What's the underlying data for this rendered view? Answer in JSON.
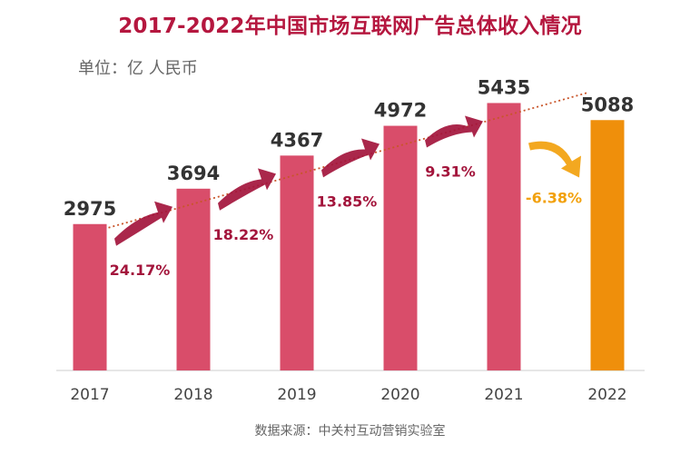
{
  "chart_data": {
    "type": "bar",
    "title": "2017-2022年中国市场互联网广告总体收入情况",
    "unit": "单位：亿 人民币",
    "source": "数据来源：中关村互动营销实验室",
    "categories": [
      "2017",
      "2018",
      "2019",
      "2020",
      "2021",
      "2022"
    ],
    "values": [
      2975,
      3694,
      4367,
      4972,
      5435,
      5088
    ],
    "growth_rates": [
      "24.17%",
      "18.22%",
      "13.85%",
      "9.31%",
      "-6.38%"
    ],
    "ylim": [
      0,
      6200
    ],
    "trendline": "dotted",
    "colors": {
      "bar": "#d94d6a",
      "bar_highlight": "#ef8f0b",
      "title": "#b5173f",
      "growth_positive": "#a3153c",
      "growth_negative": "#f2a10d",
      "trend": "#c9552a"
    }
  }
}
